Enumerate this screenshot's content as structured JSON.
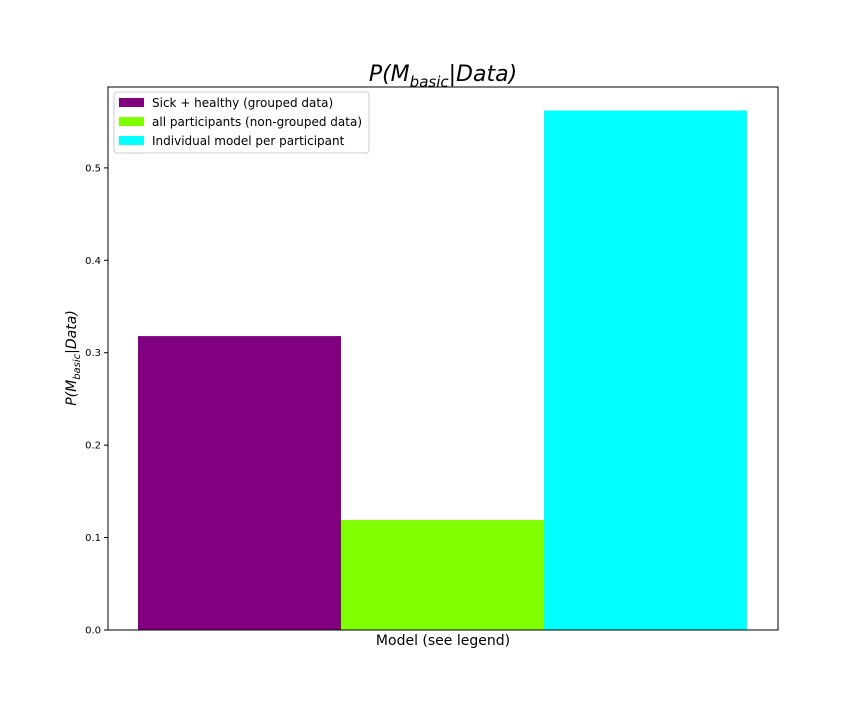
{
  "chart_data": {
    "type": "bar",
    "title": {
      "pre": "P(M",
      "sub": "basic",
      "post": "|Data)"
    },
    "ylabel": {
      "pre": "P(M",
      "sub": "basic",
      "post": "|Data)"
    },
    "xlabel": "Model (see legend)",
    "ylim": [
      0,
      0.5875
    ],
    "yticks": [
      "0.0",
      "0.1",
      "0.2",
      "0.3",
      "0.4",
      "0.5"
    ],
    "grid": false,
    "legend_position": "top-left",
    "series": [
      {
        "name": "Sick + healthy (grouped data)",
        "value": 0.318,
        "color": "#800080"
      },
      {
        "name": "all participants (non-grouped data)",
        "value": 0.119,
        "color": "#7fff00"
      },
      {
        "name": "Individual model per participant",
        "value": 0.562,
        "color": "#00ffff"
      }
    ]
  }
}
